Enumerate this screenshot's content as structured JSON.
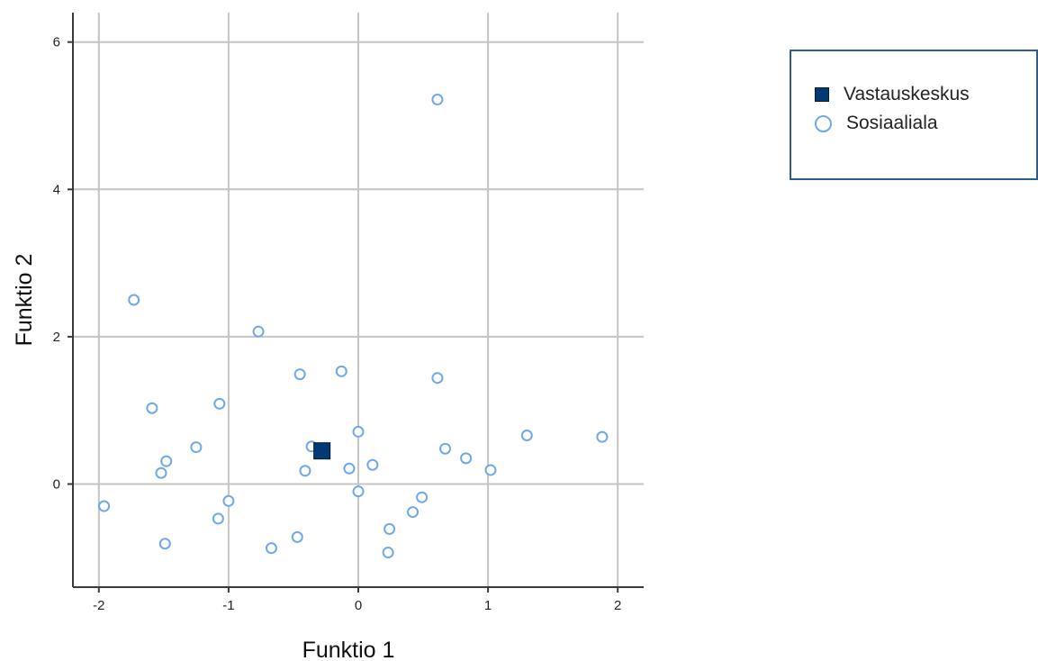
{
  "chart_data": {
    "type": "scatter",
    "title": "",
    "xlabel": "Funktio 1",
    "ylabel": "Funktio 2",
    "xlim": [
      -2.2,
      2.2
    ],
    "ylim": [
      -1.4,
      6.4
    ],
    "xticks": [
      "-2",
      "-1",
      "0",
      "1",
      "2"
    ],
    "xtick_values": [
      -2,
      -1,
      0,
      1,
      2
    ],
    "yticks": [
      "0",
      "2",
      "4",
      "6"
    ],
    "ytick_values": [
      0,
      2,
      4,
      6
    ],
    "grid": true,
    "legend_position": "top-right",
    "series": [
      {
        "name": "Vastauskeskus",
        "marker": "square",
        "color": "#003b73",
        "points": [
          {
            "x": -0.28,
            "y": 0.45
          }
        ]
      },
      {
        "name": "Sosiaaliala",
        "marker": "circle",
        "color": "#6fa8e8",
        "points": [
          {
            "x": 0.61,
            "y": 5.22
          },
          {
            "x": -1.73,
            "y": 2.5
          },
          {
            "x": -0.77,
            "y": 2.07
          },
          {
            "x": -0.45,
            "y": 1.49
          },
          {
            "x": -0.13,
            "y": 1.53
          },
          {
            "x": 0.61,
            "y": 1.44
          },
          {
            "x": -1.59,
            "y": 1.03
          },
          {
            "x": -1.07,
            "y": 1.09
          },
          {
            "x": 0.0,
            "y": 0.71
          },
          {
            "x": 1.3,
            "y": 0.66
          },
          {
            "x": 1.88,
            "y": 0.64
          },
          {
            "x": -1.25,
            "y": 0.5
          },
          {
            "x": -0.36,
            "y": 0.51
          },
          {
            "x": 0.67,
            "y": 0.48
          },
          {
            "x": 0.83,
            "y": 0.35
          },
          {
            "x": -1.48,
            "y": 0.31
          },
          {
            "x": 0.11,
            "y": 0.26
          },
          {
            "x": -0.07,
            "y": 0.21
          },
          {
            "x": -0.41,
            "y": 0.18
          },
          {
            "x": 1.02,
            "y": 0.19
          },
          {
            "x": -1.52,
            "y": 0.15
          },
          {
            "x": 0.0,
            "y": -0.1
          },
          {
            "x": 0.49,
            "y": -0.18
          },
          {
            "x": -1.0,
            "y": -0.23
          },
          {
            "x": -1.96,
            "y": -0.3
          },
          {
            "x": 0.42,
            "y": -0.38
          },
          {
            "x": -1.08,
            "y": -0.47
          },
          {
            "x": 0.24,
            "y": -0.61
          },
          {
            "x": -0.47,
            "y": -0.72
          },
          {
            "x": -1.49,
            "y": -0.81
          },
          {
            "x": -0.67,
            "y": -0.87
          },
          {
            "x": 0.23,
            "y": -0.93
          }
        ]
      }
    ]
  },
  "legend": {
    "items": [
      {
        "label": "Vastauskeskus"
      },
      {
        "label": "Sosiaaliala"
      }
    ]
  }
}
